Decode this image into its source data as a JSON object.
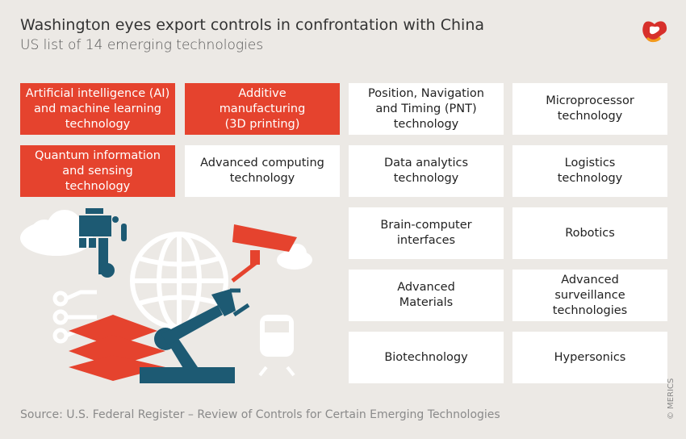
{
  "header": {
    "title": "Washington eyes export controls in confrontation with China",
    "subtitle": "US list of 14 emerging technologies"
  },
  "colors": {
    "highlight": "#e5432e",
    "cell": "#ffffff",
    "background": "#ece9e5",
    "illustration_teal": "#1d5a73"
  },
  "technologies": [
    {
      "label": "Artificial intelligence (AI)\nand machine learning\ntechnology",
      "highlighted": true
    },
    {
      "label": "Additive\nmanufacturing\n(3D printing)",
      "highlighted": true
    },
    {
      "label": "Position, Navigation\nand Timing (PNT)\ntechnology",
      "highlighted": false
    },
    {
      "label": "Microprocessor\ntechnology",
      "highlighted": false
    },
    {
      "label": "Quantum information\nand sensing\ntechnology",
      "highlighted": true
    },
    {
      "label": "Advanced computing\ntechnology",
      "highlighted": false
    },
    {
      "label": "Data analytics\ntechnology",
      "highlighted": false
    },
    {
      "label": "Logistics\ntechnology",
      "highlighted": false
    },
    {
      "label": "Brain-computer\ninterfaces",
      "highlighted": false
    },
    {
      "label": "Robotics",
      "highlighted": false
    },
    {
      "label": "Advanced\nMaterials",
      "highlighted": false
    },
    {
      "label": "Advanced\nsurveillance\ntechnologies",
      "highlighted": false
    },
    {
      "label": "Biotechnology",
      "highlighted": false
    },
    {
      "label": "Hypersonics",
      "highlighted": false
    }
  ],
  "footer": {
    "source": "Source: U.S. Federal Register – Review of Controls for Certain Emerging Technologies",
    "credit": "© MERICS"
  }
}
